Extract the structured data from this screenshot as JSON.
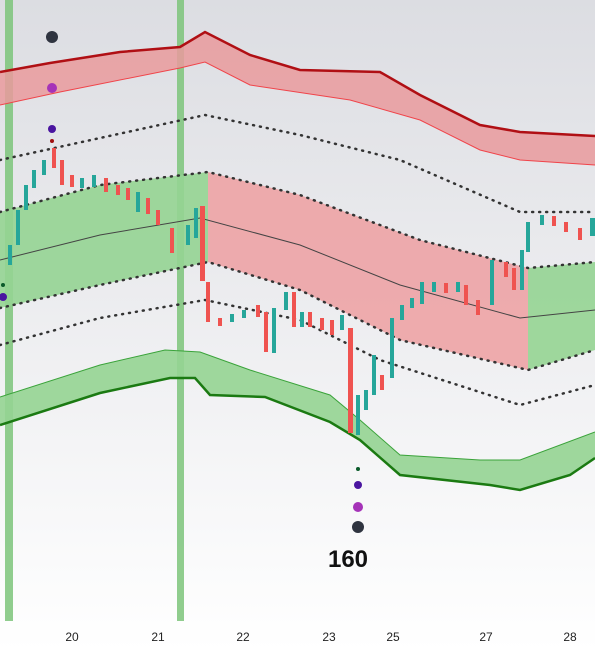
{
  "chart_data": {
    "type": "candlestick",
    "x_labels": [
      "20",
      "21",
      "22",
      "23",
      "25",
      "27",
      "28"
    ],
    "annotation": "160"
  }
}
